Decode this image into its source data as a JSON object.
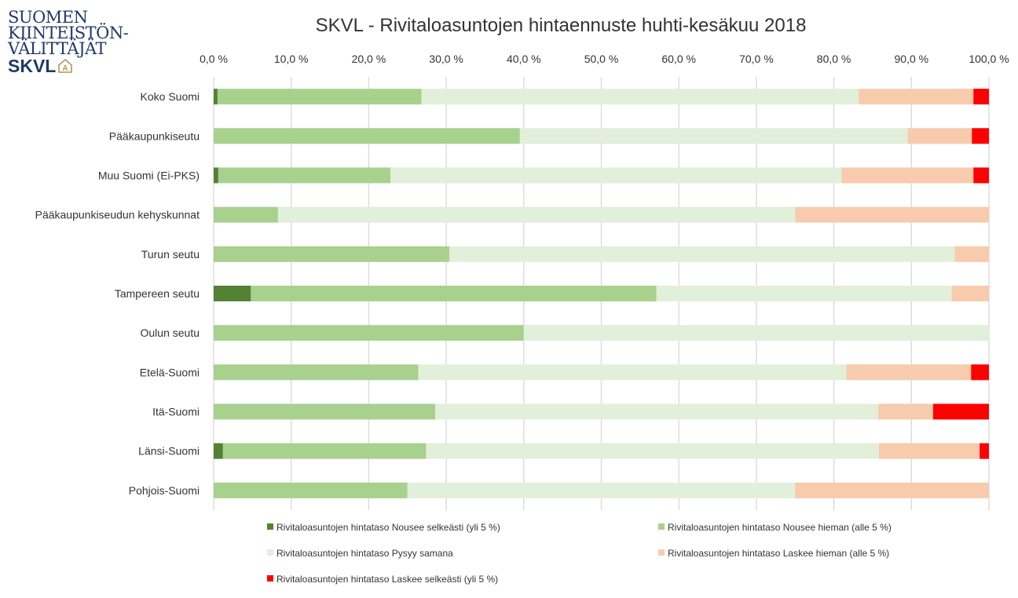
{
  "logo": {
    "lines": [
      "SUOMEN",
      "KIINTEISTÖN-",
      "VÄLITTÄJÄT"
    ],
    "brand": "SKVL",
    "badge_letter": "A"
  },
  "chart_data": {
    "type": "bar",
    "orientation": "horizontal-stacked-100",
    "title": "SKVL - Rivitaloasuntojen hintaennuste huhti-kesäkuu 2018",
    "xlim": [
      0,
      100
    ],
    "xticks": [
      "0,0 %",
      "10,0 %",
      "20,0 %",
      "30,0 %",
      "40,0 %",
      "50,0 %",
      "60,0 %",
      "70,0 %",
      "80,0 %",
      "90,0 %",
      "100,0 %"
    ],
    "x_axis_position": "top",
    "grid": true,
    "legend_position": "bottom",
    "categories": [
      "Koko Suomi",
      "Pääkaupunkiseutu",
      "Muu Suomi (Ei-PKS)",
      "Pääkaupunkiseudun kehyskunnat",
      "Turun seutu",
      "Tampereen seutu",
      "Oulun seutu",
      "Etelä-Suomi",
      "Itä-Suomi",
      "Länsi-Suomi",
      "Pohjois-Suomi"
    ],
    "series": [
      {
        "name": "Rivitaloasuntojen hintataso Nousee selkeästi (yli 5 %)",
        "color": "#548235",
        "values": [
          0.5,
          0,
          0.6,
          0,
          0,
          4.8,
          0,
          0,
          0,
          1.2,
          0
        ]
      },
      {
        "name": "Rivitaloasuntojen hintataso Nousee hieman (alle 5 %)",
        "color": "#a9d18e",
        "values": [
          26.3,
          39.5,
          22.2,
          8.3,
          30.4,
          52.3,
          40.0,
          26.4,
          28.6,
          26.2,
          25.0
        ]
      },
      {
        "name": "Rivitaloasuntojen hintataso Pysyy samana",
        "color": "#e2efda",
        "values": [
          56.4,
          50.0,
          58.2,
          66.7,
          65.2,
          38.1,
          60.0,
          55.2,
          57.1,
          58.4,
          50.0
        ]
      },
      {
        "name": "Rivitaloasuntojen hintataso Laskee hieman (alle 5 %)",
        "color": "#f8cbad",
        "values": [
          14.8,
          8.3,
          17.0,
          25.0,
          4.4,
          4.8,
          0,
          16.1,
          7.1,
          13.0,
          25.0
        ]
      },
      {
        "name": "Rivitaloasuntojen hintataso Laskee selkeästi (yli 5 %)",
        "color": "#ff0000",
        "values": [
          2.0,
          2.2,
          2.0,
          0,
          0,
          0,
          0,
          2.3,
          7.2,
          1.2,
          0
        ]
      }
    ]
  }
}
